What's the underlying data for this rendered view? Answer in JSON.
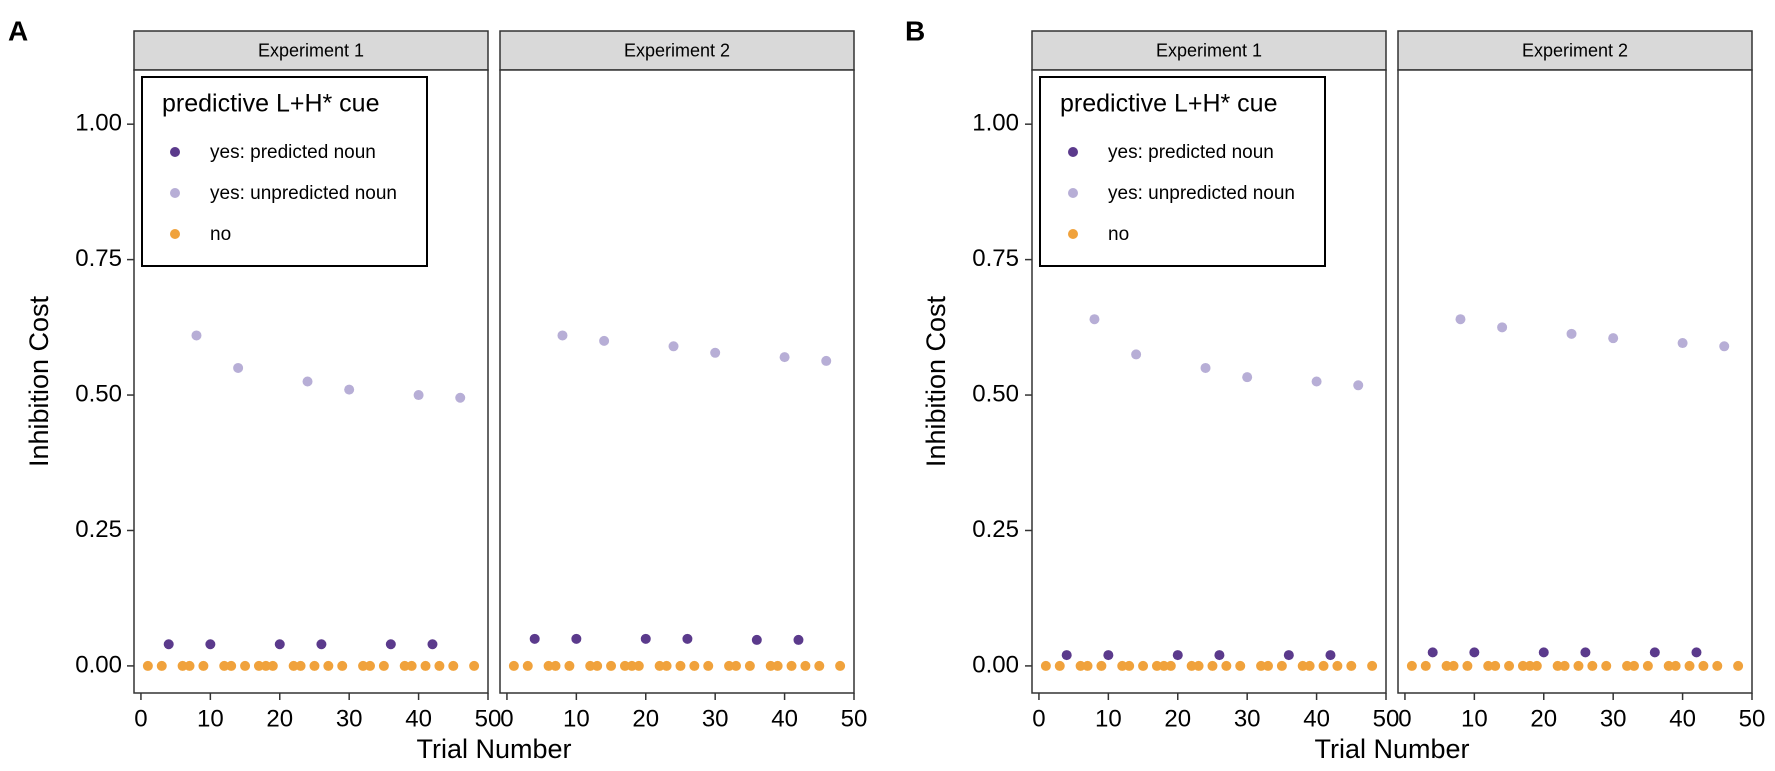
{
  "figure": {
    "panel_labels": [
      "A",
      "B"
    ]
  },
  "colors": {
    "yes_predicted": "#5b3a8c",
    "yes_unpredicted": "#b7aed6",
    "no": "#f0a23c",
    "strip_bg": "#d9d9d9",
    "panel_border": "#333333"
  },
  "chart_data": [
    {
      "type": "scatter",
      "panel_label": "A",
      "xlabel": "Trial Number",
      "ylabel": "Inhibition Cost",
      "xlim": [
        -1,
        50
      ],
      "ylim": [
        -0.05,
        1.1
      ],
      "xticks": [
        0,
        10,
        20,
        30,
        40,
        50
      ],
      "xtick_labels": [
        "0",
        "10",
        "20",
        "30",
        "40",
        "50"
      ],
      "yticks": [
        0,
        0.25,
        0.5,
        0.75,
        1.0
      ],
      "ytick_labels": [
        "0.00",
        "0.25",
        "0.50",
        "0.75",
        "1.00"
      ],
      "legend": {
        "title": "predictive L+H* cue",
        "position": "top-left",
        "entries": [
          "yes: predicted noun",
          "yes: unpredicted noun",
          "no"
        ]
      },
      "facets": [
        {
          "label": "Experiment 1",
          "series": [
            {
              "name": "yes: predicted noun",
              "x": [
                4,
                10,
                20,
                26,
                36,
                42
              ],
              "y": [
                0.04,
                0.04,
                0.04,
                0.04,
                0.04,
                0.04
              ]
            },
            {
              "name": "yes: unpredicted noun",
              "x": [
                8,
                14,
                24,
                30,
                40,
                46
              ],
              "y": [
                0.61,
                0.55,
                0.525,
                0.51,
                0.5,
                0.495
              ]
            },
            {
              "name": "no",
              "x": [
                1,
                3,
                6,
                7,
                9,
                12,
                13,
                15,
                17,
                18,
                19,
                22,
                23,
                25,
                27,
                29,
                32,
                33,
                35,
                38,
                39,
                41,
                43,
                45,
                48
              ],
              "y": [
                0,
                0,
                0,
                0,
                0,
                0,
                0,
                0,
                0,
                0,
                0,
                0,
                0,
                0,
                0,
                0,
                0,
                0,
                0,
                0,
                0,
                0,
                0,
                0,
                0
              ]
            }
          ]
        },
        {
          "label": "Experiment 2",
          "series": [
            {
              "name": "yes: predicted noun",
              "x": [
                4,
                10,
                20,
                26,
                36,
                42
              ],
              "y": [
                0.05,
                0.05,
                0.05,
                0.05,
                0.048,
                0.048
              ]
            },
            {
              "name": "yes: unpredicted noun",
              "x": [
                8,
                14,
                24,
                30,
                40,
                46
              ],
              "y": [
                0.61,
                0.6,
                0.59,
                0.578,
                0.57,
                0.563
              ]
            },
            {
              "name": "no",
              "x": [
                1,
                3,
                6,
                7,
                9,
                12,
                13,
                15,
                17,
                18,
                19,
                22,
                23,
                25,
                27,
                29,
                32,
                33,
                35,
                38,
                39,
                41,
                43,
                45,
                48
              ],
              "y": [
                0,
                0,
                0,
                0,
                0,
                0,
                0,
                0,
                0,
                0,
                0,
                0,
                0,
                0,
                0,
                0,
                0,
                0,
                0,
                0,
                0,
                0,
                0,
                0,
                0
              ]
            }
          ]
        }
      ]
    },
    {
      "type": "scatter",
      "panel_label": "B",
      "xlabel": "Trial Number",
      "ylabel": "Inhibition Cost",
      "xlim": [
        -1,
        50
      ],
      "ylim": [
        -0.05,
        1.1
      ],
      "xticks": [
        0,
        10,
        20,
        30,
        40,
        50
      ],
      "xtick_labels": [
        "0",
        "10",
        "20",
        "30",
        "40",
        "50"
      ],
      "yticks": [
        0,
        0.25,
        0.5,
        0.75,
        1.0
      ],
      "ytick_labels": [
        "0.00",
        "0.25",
        "0.50",
        "0.75",
        "1.00"
      ],
      "legend": {
        "title": "predictive L+H* cue",
        "position": "top-left",
        "entries": [
          "yes: predicted noun",
          "yes: unpredicted noun",
          "no"
        ]
      },
      "facets": [
        {
          "label": "Experiment 1",
          "series": [
            {
              "name": "yes: predicted noun",
              "x": [
                4,
                10,
                20,
                26,
                36,
                42
              ],
              "y": [
                0.02,
                0.02,
                0.02,
                0.02,
                0.02,
                0.02
              ]
            },
            {
              "name": "yes: unpredicted noun",
              "x": [
                8,
                14,
                24,
                30,
                40,
                46
              ],
              "y": [
                0.64,
                0.575,
                0.55,
                0.533,
                0.525,
                0.518
              ]
            },
            {
              "name": "no",
              "x": [
                1,
                3,
                6,
                7,
                9,
                12,
                13,
                15,
                17,
                18,
                19,
                22,
                23,
                25,
                27,
                29,
                32,
                33,
                35,
                38,
                39,
                41,
                43,
                45,
                48
              ],
              "y": [
                0,
                0,
                0,
                0,
                0,
                0,
                0,
                0,
                0,
                0,
                0,
                0,
                0,
                0,
                0,
                0,
                0,
                0,
                0,
                0,
                0,
                0,
                0,
                0,
                0
              ]
            }
          ]
        },
        {
          "label": "Experiment 2",
          "series": [
            {
              "name": "yes: predicted noun",
              "x": [
                4,
                10,
                20,
                26,
                36,
                42
              ],
              "y": [
                0.025,
                0.025,
                0.025,
                0.025,
                0.025,
                0.025
              ]
            },
            {
              "name": "yes: unpredicted noun",
              "x": [
                8,
                14,
                24,
                30,
                40,
                46
              ],
              "y": [
                0.64,
                0.625,
                0.613,
                0.605,
                0.596,
                0.59
              ]
            },
            {
              "name": "no",
              "x": [
                1,
                3,
                6,
                7,
                9,
                12,
                13,
                15,
                17,
                18,
                19,
                22,
                23,
                25,
                27,
                29,
                32,
                33,
                35,
                38,
                39,
                41,
                43,
                45,
                48
              ],
              "y": [
                0,
                0,
                0,
                0,
                0,
                0,
                0,
                0,
                0,
                0,
                0,
                0,
                0,
                0,
                0,
                0,
                0,
                0,
                0,
                0,
                0,
                0,
                0,
                0,
                0
              ]
            }
          ]
        }
      ]
    }
  ]
}
